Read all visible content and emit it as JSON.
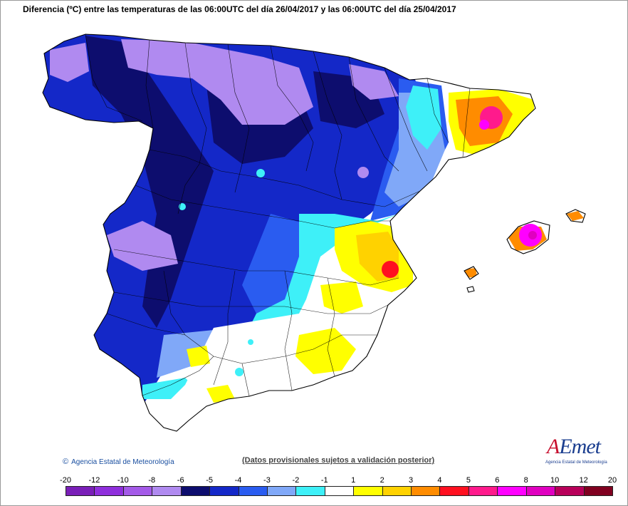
{
  "title": "Diferencia (ºC) entre las temperaturas de las 06:00UTC del día 26/04/2017 y las 06:00UTC del día 25/04/2017",
  "footer": {
    "credit": "Agencia Estatal de Meteorología",
    "note": "(Datos provisionales sujetos a validación posterior)"
  },
  "logo": {
    "wordmark_a": "A",
    "wordmark_rest": "Emet",
    "subtitle": "Agencia Estatal de Meteorología"
  },
  "legend": {
    "ticks": [
      "-20",
      "-12",
      "-10",
      "-8",
      "-6",
      "-5",
      "-4",
      "-3",
      "-2",
      "-1",
      "1",
      "2",
      "3",
      "4",
      "5",
      "6",
      "8",
      "10",
      "12",
      "20"
    ],
    "colors": [
      "#7a1fb8",
      "#8f2fdc",
      "#a45ae8",
      "#b08af0",
      "#0d0d6e",
      "#1428c8",
      "#2a5cf0",
      "#80a8f8",
      "#3ef0f8",
      "#ffffff",
      "#ffff00",
      "#ffd200",
      "#ff8c00",
      "#ff1020",
      "#ff1a8c",
      "#ff00ff",
      "#e000c0",
      "#b8005a",
      "#800020"
    ]
  },
  "colors": {
    "sea": "#ffffff",
    "border": "#000000"
  }
}
